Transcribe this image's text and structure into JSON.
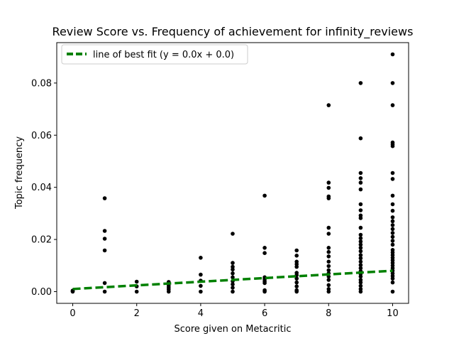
{
  "chart_data": {
    "type": "scatter",
    "title": "Review Score vs. Frequency of achievement for infinity_reviews",
    "xlabel": "Score given on Metacritic",
    "ylabel": "Topic frequency",
    "xlim": [
      -0.5,
      10.5
    ],
    "ylim": [
      -0.0045,
      0.0955
    ],
    "xticks": [
      0,
      2,
      4,
      6,
      8,
      10
    ],
    "xtick_labels": [
      "0",
      "2",
      "4",
      "6",
      "8",
      "10"
    ],
    "yticks": [
      0.0,
      0.02,
      0.04,
      0.06,
      0.08
    ],
    "ytick_labels": [
      "0.00",
      "0.02",
      "0.04",
      "0.06",
      "0.08"
    ],
    "grid": false,
    "legend": {
      "placement": "top-left",
      "entries": [
        "line of best fit (y = 0.0x + 0.0)"
      ]
    },
    "fit_line": {
      "color": "#008000",
      "style": "dashed",
      "x": [
        0,
        10
      ],
      "y": [
        0.001,
        0.008
      ]
    },
    "point_color": "#000000",
    "points": [
      [
        0,
        0.0
      ],
      [
        0,
        0.0002
      ],
      [
        0,
        0.0004
      ],
      [
        1,
        0.0
      ],
      [
        1,
        0.0033
      ],
      [
        1,
        0.0158
      ],
      [
        1,
        0.0203
      ],
      [
        1,
        0.0233
      ],
      [
        1,
        0.0358
      ],
      [
        2,
        0.0
      ],
      [
        2,
        0.002
      ],
      [
        2,
        0.0038
      ],
      [
        3,
        0.0
      ],
      [
        3,
        0.0008
      ],
      [
        3,
        0.0015
      ],
      [
        3,
        0.0022
      ],
      [
        3,
        0.003
      ],
      [
        3,
        0.0037
      ],
      [
        4,
        0.0
      ],
      [
        4,
        0.0022
      ],
      [
        4,
        0.0042
      ],
      [
        4,
        0.0065
      ],
      [
        4,
        0.013
      ],
      [
        5,
        0.0
      ],
      [
        5,
        0.0015
      ],
      [
        5,
        0.0028
      ],
      [
        5,
        0.004
      ],
      [
        5,
        0.0055
      ],
      [
        5,
        0.007
      ],
      [
        5,
        0.0085
      ],
      [
        5,
        0.0095
      ],
      [
        5,
        0.011
      ],
      [
        5,
        0.0222
      ],
      [
        6,
        0.0
      ],
      [
        6,
        0.0005
      ],
      [
        6,
        0.0033
      ],
      [
        6,
        0.004
      ],
      [
        6,
        0.0048
      ],
      [
        6,
        0.0055
      ],
      [
        6,
        0.0148
      ],
      [
        6,
        0.0168
      ],
      [
        6,
        0.0368
      ],
      [
        7,
        0.0
      ],
      [
        7,
        0.0005
      ],
      [
        7,
        0.002
      ],
      [
        7,
        0.0035
      ],
      [
        7,
        0.005
      ],
      [
        7,
        0.0063
      ],
      [
        7,
        0.0072
      ],
      [
        7,
        0.0095
      ],
      [
        7,
        0.0105
      ],
      [
        7,
        0.0115
      ],
      [
        7,
        0.0138
      ],
      [
        7,
        0.0158
      ],
      [
        8,
        0.0
      ],
      [
        8,
        0.001
      ],
      [
        8,
        0.0025
      ],
      [
        8,
        0.0045
      ],
      [
        8,
        0.0058
      ],
      [
        8,
        0.007
      ],
      [
        8,
        0.0082
      ],
      [
        8,
        0.0098
      ],
      [
        8,
        0.0115
      ],
      [
        8,
        0.0135
      ],
      [
        8,
        0.0152
      ],
      [
        8,
        0.0168
      ],
      [
        8,
        0.0222
      ],
      [
        8,
        0.0245
      ],
      [
        8,
        0.0358
      ],
      [
        8,
        0.0365
      ],
      [
        8,
        0.0398
      ],
      [
        8,
        0.0418
      ],
      [
        8,
        0.0715
      ],
      [
        9,
        0.0
      ],
      [
        9,
        0.001
      ],
      [
        9,
        0.0022
      ],
      [
        9,
        0.0035
      ],
      [
        9,
        0.0045
      ],
      [
        9,
        0.0058
      ],
      [
        9,
        0.0068
      ],
      [
        9,
        0.0078
      ],
      [
        9,
        0.009
      ],
      [
        9,
        0.0102
      ],
      [
        9,
        0.0115
      ],
      [
        9,
        0.0128
      ],
      [
        9,
        0.014
      ],
      [
        9,
        0.0155
      ],
      [
        9,
        0.0168
      ],
      [
        9,
        0.018
      ],
      [
        9,
        0.0192
      ],
      [
        9,
        0.0205
      ],
      [
        9,
        0.0218
      ],
      [
        9,
        0.0245
      ],
      [
        9,
        0.0282
      ],
      [
        9,
        0.0292
      ],
      [
        9,
        0.0312
      ],
      [
        9,
        0.0335
      ],
      [
        9,
        0.0392
      ],
      [
        9,
        0.0418
      ],
      [
        9,
        0.0435
      ],
      [
        9,
        0.0455
      ],
      [
        9,
        0.0588
      ],
      [
        9,
        0.08
      ],
      [
        10,
        0.0
      ],
      [
        10,
        0.0035
      ],
      [
        10,
        0.005
      ],
      [
        10,
        0.006
      ],
      [
        10,
        0.007
      ],
      [
        10,
        0.008
      ],
      [
        10,
        0.009
      ],
      [
        10,
        0.01
      ],
      [
        10,
        0.011
      ],
      [
        10,
        0.012
      ],
      [
        10,
        0.013
      ],
      [
        10,
        0.014
      ],
      [
        10,
        0.015
      ],
      [
        10,
        0.016
      ],
      [
        10,
        0.018
      ],
      [
        10,
        0.0195
      ],
      [
        10,
        0.021
      ],
      [
        10,
        0.0225
      ],
      [
        10,
        0.024
      ],
      [
        10,
        0.0255
      ],
      [
        10,
        0.027
      ],
      [
        10,
        0.0285
      ],
      [
        10,
        0.031
      ],
      [
        10,
        0.0335
      ],
      [
        10,
        0.0368
      ],
      [
        10,
        0.0432
      ],
      [
        10,
        0.0455
      ],
      [
        10,
        0.0558
      ],
      [
        10,
        0.0565
      ],
      [
        10,
        0.0572
      ],
      [
        10,
        0.0715
      ],
      [
        10,
        0.08
      ],
      [
        10,
        0.091
      ]
    ]
  }
}
